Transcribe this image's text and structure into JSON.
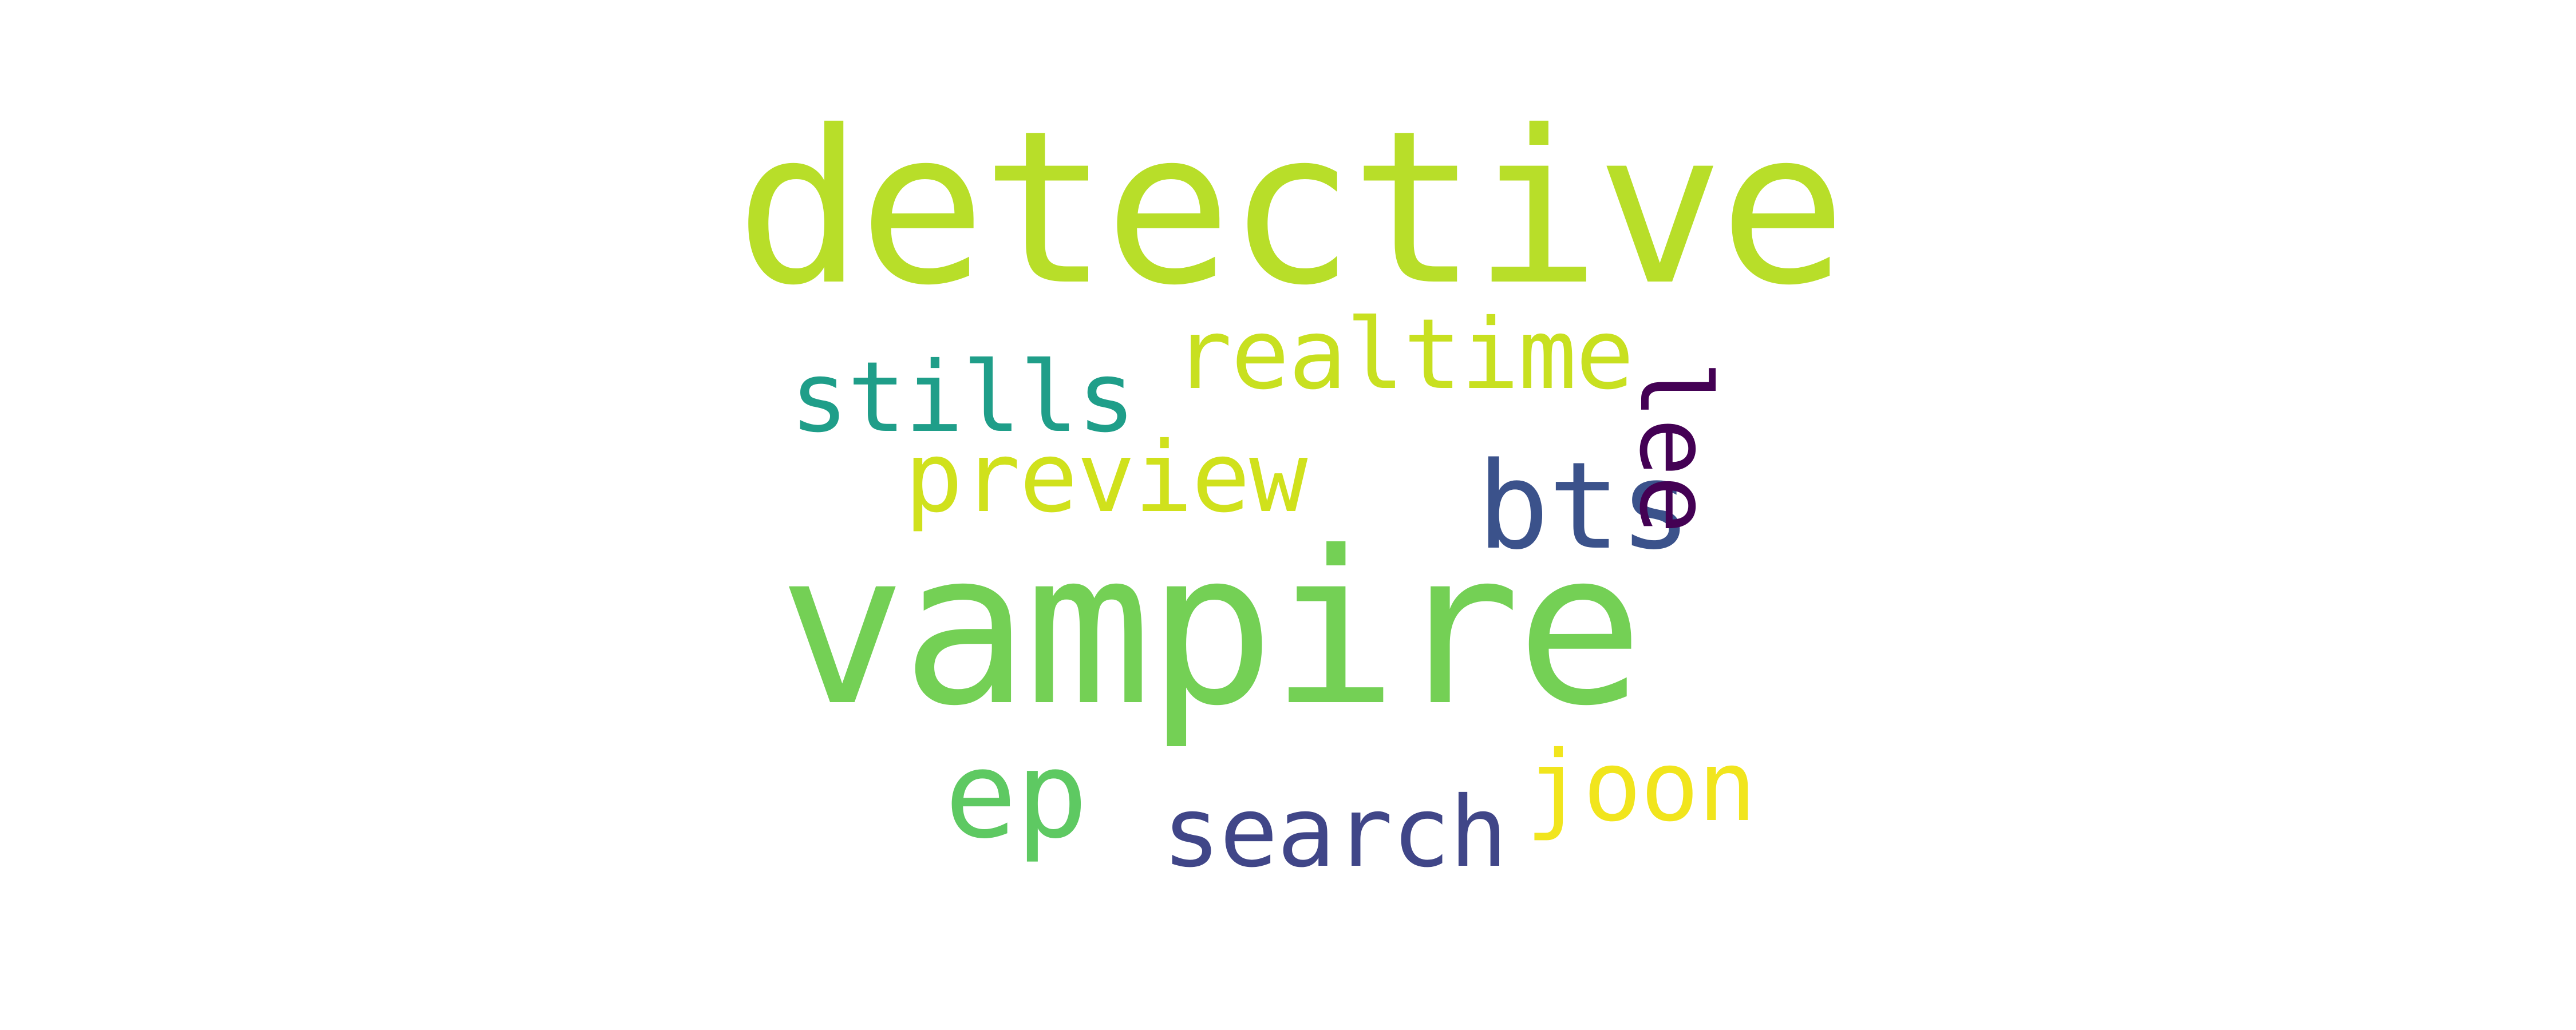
{
  "words": [
    {
      "text": "detective",
      "color": "#b8de29"
    },
    {
      "text": "vampire",
      "color": "#74d055"
    },
    {
      "text": "realtime",
      "color": "#c8e020"
    },
    {
      "text": "stills",
      "color": "#1f9e89"
    },
    {
      "text": "preview",
      "color": "#d0e11c"
    },
    {
      "text": "bts",
      "color": "#3b528b"
    },
    {
      "text": "lee",
      "color": "#440154"
    },
    {
      "text": "ep",
      "color": "#5ec962"
    },
    {
      "text": "search",
      "color": "#404688"
    },
    {
      "text": "joon",
      "color": "#f1e51d"
    }
  ]
}
